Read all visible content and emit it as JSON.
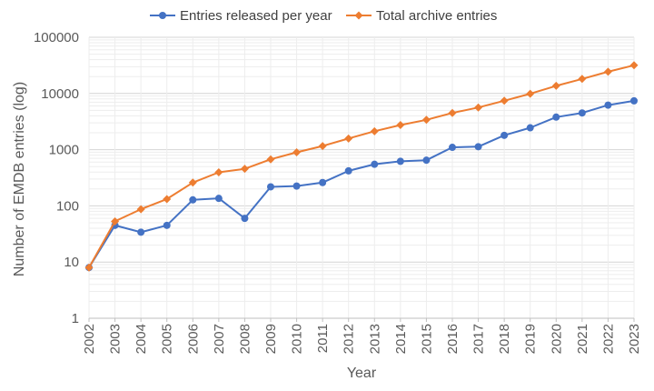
{
  "chart_data": {
    "type": "line",
    "title": "",
    "xlabel": "Year",
    "ylabel": "Number of EMDB entries (log)",
    "y_scale": "log",
    "ylim": [
      1,
      100000
    ],
    "y_ticks": [
      "1",
      "10",
      "100",
      "1000",
      "10000",
      "100000"
    ],
    "grid": true,
    "legend_position": "top",
    "categories": [
      "2002",
      "2003",
      "2004",
      "2005",
      "2006",
      "2007",
      "2008",
      "2009",
      "2010",
      "2011",
      "2012",
      "2013",
      "2014",
      "2015",
      "2016",
      "2017",
      "2018",
      "2019",
      "2020",
      "2021",
      "2022",
      "2023"
    ],
    "series": [
      {
        "name": "Entries released per year",
        "color": "#4472C4",
        "marker": "circle",
        "values": [
          8,
          45,
          34,
          45,
          128,
          136,
          60,
          218,
          225,
          260,
          420,
          550,
          620,
          650,
          1100,
          1130,
          1800,
          2450,
          3800,
          4500,
          6200,
          7400
        ]
      },
      {
        "name": "Total archive entries",
        "color": "#ED7D31",
        "marker": "diamond",
        "values": [
          8,
          53,
          87,
          132,
          260,
          396,
          456,
          674,
          899,
          1159,
          1579,
          2129,
          2749,
          3399,
          4499,
          5629,
          7429,
          9879,
          13679,
          18179,
          24379,
          31779
        ]
      }
    ]
  }
}
